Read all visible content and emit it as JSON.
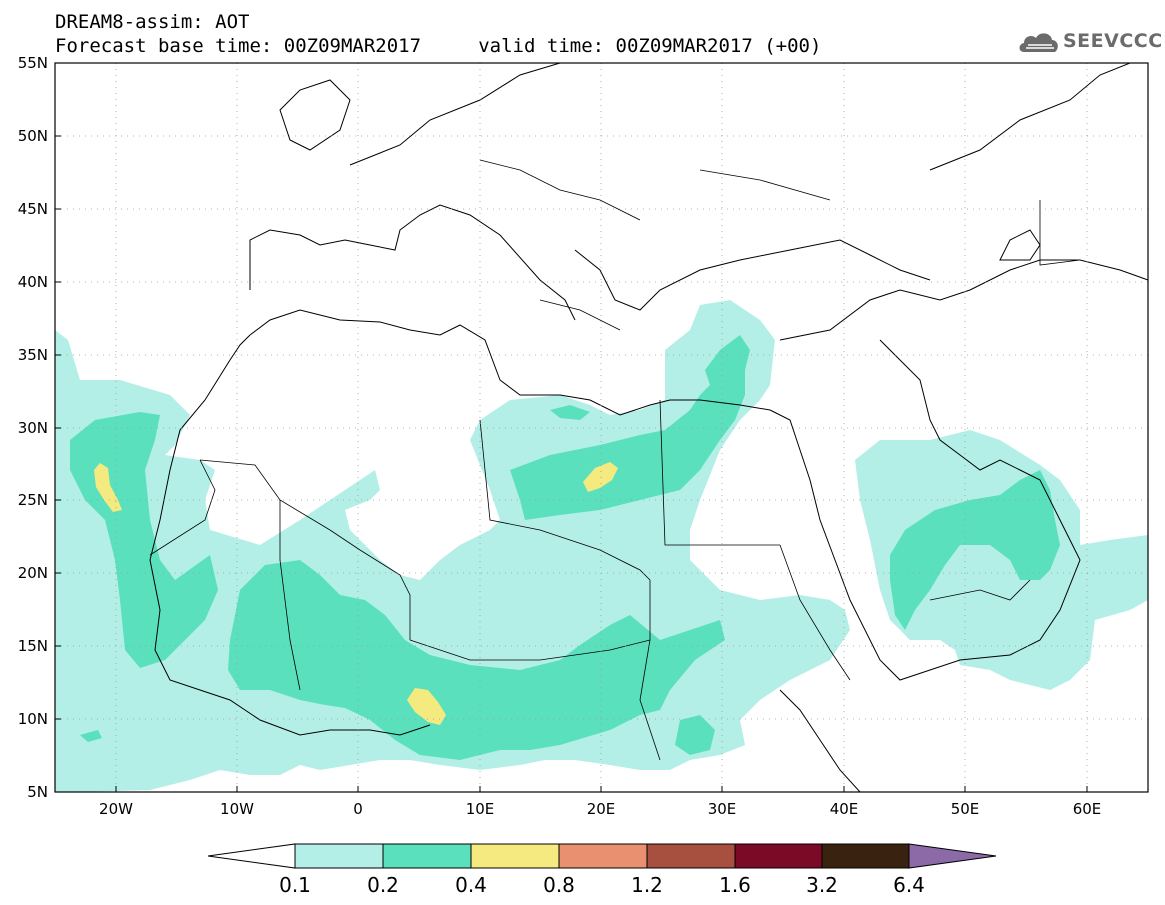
{
  "header": {
    "line1": "DREAM8-assim: AOT",
    "line2": "Forecast base time: 00Z09MAR2017     valid time: 00Z09MAR2017 (+00)",
    "logo_text": "SEEVCCC",
    "logo_icon": "cloud-icon"
  },
  "map": {
    "lon_range": [
      -25,
      65
    ],
    "lat_range": [
      5,
      55
    ],
    "lat_labels": [
      "55N",
      "50N",
      "45N",
      "40N",
      "35N",
      "30N",
      "25N",
      "20N",
      "15N",
      "10N",
      "5N"
    ],
    "lon_labels": [
      "20W",
      "10W",
      "0",
      "10E",
      "20E",
      "30E",
      "40E",
      "50E",
      "60E"
    ],
    "grid": "dotted"
  },
  "colorbar": {
    "labels": [
      "0.1",
      "0.2",
      "0.4",
      "0.8",
      "1.2",
      "1.6",
      "3.2",
      "6.4"
    ],
    "colors": [
      "#ffffff",
      "#b3efe6",
      "#5be0be",
      "#f5ea80",
      "#e89070",
      "#a85040",
      "#7a0a25",
      "#3a2210",
      "#8c6aa8"
    ]
  }
}
